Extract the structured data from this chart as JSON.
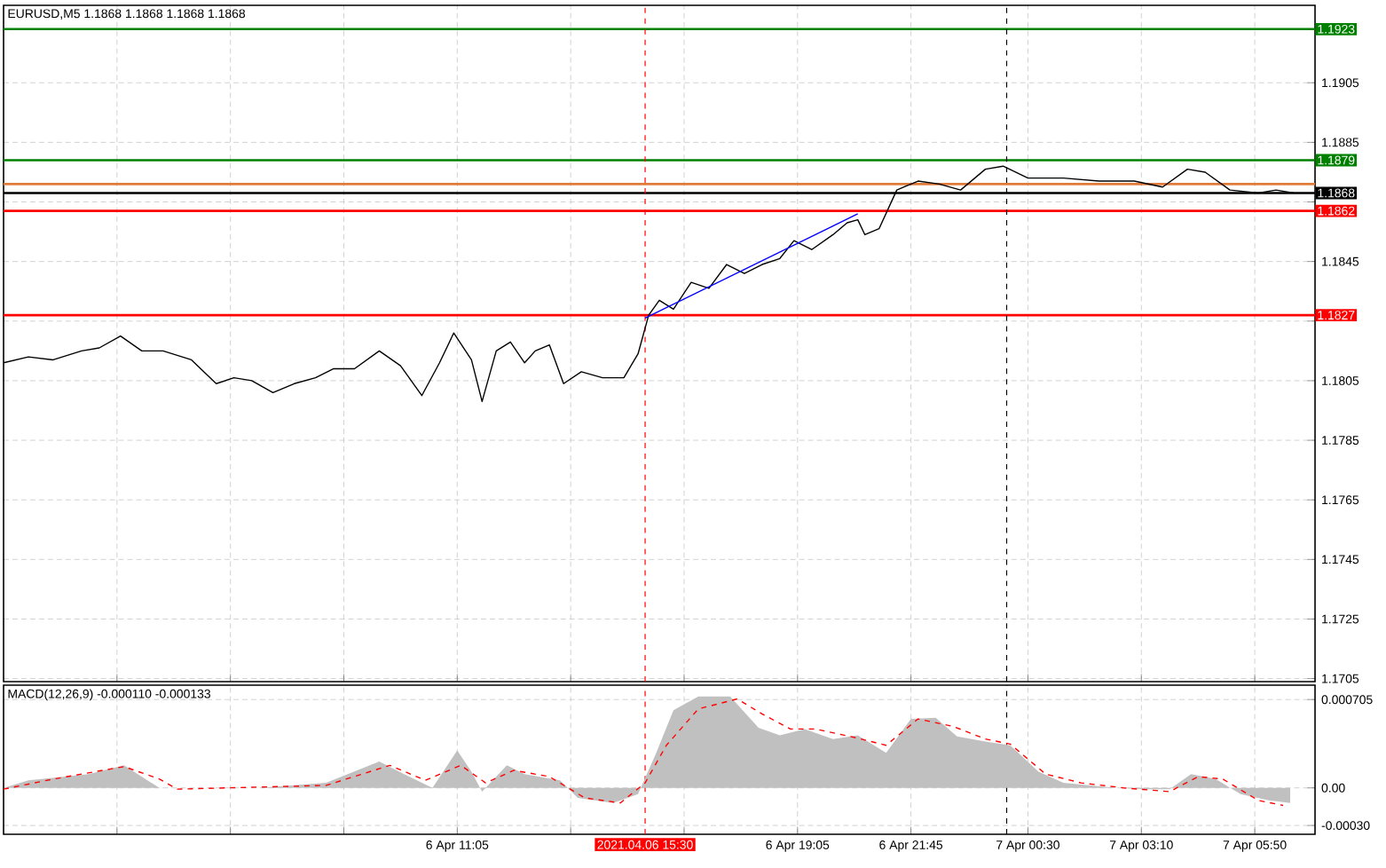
{
  "chart_data": [
    {
      "type": "line",
      "title": "EURUSD,M5  1.1868 1.1868 1.1868 1.1868",
      "grid": true,
      "tick_labels": "y",
      "xlim": [
        "2021-04-06T00:25",
        "2021-04-07T07:15"
      ],
      "ylim": [
        1.1704,
        1.1931
      ],
      "xticks": [
        {
          "value": "2021-04-06T03:05",
          "label": null
        },
        {
          "value": "2021-04-06T05:45",
          "label": null
        },
        {
          "value": "2021-04-06T08:25",
          "label": null
        },
        {
          "value": "2021-04-06T11:05",
          "label": null
        },
        {
          "value": "2021-04-06T13:45",
          "label": null
        },
        {
          "value": "2021-04-06T16:25",
          "label": null
        },
        {
          "value": "2021-04-06T19:05",
          "label": null
        },
        {
          "value": "2021-04-06T21:45",
          "label": null
        },
        {
          "value": "2021-04-07T00:30",
          "label": null
        },
        {
          "value": "2021-04-07T03:10",
          "label": null
        },
        {
          "value": "2021-04-07T05:50",
          "label": null
        }
      ],
      "yticks": [
        {
          "value": 1.1705,
          "label": "1.1705"
        },
        {
          "value": 1.1725,
          "label": "1.1725"
        },
        {
          "value": 1.1745,
          "label": "1.1745"
        },
        {
          "value": 1.1765,
          "label": "1.1765"
        },
        {
          "value": 1.1785,
          "label": "1.1785"
        },
        {
          "value": 1.1805,
          "label": "1.1805"
        },
        {
          "value": 1.1825,
          "label": null
        },
        {
          "value": 1.1845,
          "label": "1.1845"
        },
        {
          "value": 1.1865,
          "label": null
        },
        {
          "value": 1.1885,
          "label": "1.1885"
        },
        {
          "value": 1.1905,
          "label": "1.1905"
        }
      ],
      "ref_lines": [
        {
          "axis": "y",
          "value": 1.1923,
          "label": "1.1923",
          "color": "#008000"
        },
        {
          "axis": "y",
          "value": 1.1879,
          "label": "1.1879",
          "color": "#008000"
        },
        {
          "axis": "y",
          "value": 1.1871,
          "color": "#e07b39"
        },
        {
          "axis": "y",
          "value": 1.1868,
          "label": "1.1868",
          "color": "#000000"
        },
        {
          "axis": "y",
          "value": 1.1862,
          "label": "1.1862",
          "color": "#ff0000"
        },
        {
          "axis": "y",
          "value": 1.1827,
          "label": "1.1827",
          "color": "#ff0000"
        },
        {
          "axis": "x",
          "value": "2021-04-06T15:30",
          "color": "#ff0000",
          "line_style": "dashed"
        },
        {
          "axis": "x",
          "value": "2021-04-07T00:00",
          "color": "#000000",
          "line_style": "dashed"
        }
      ],
      "series": [
        {
          "color": "#000000",
          "x": [
            "2021-04-06T00:25",
            "2021-04-06T01:00",
            "2021-04-06T01:35",
            "2021-04-06T02:15",
            "2021-04-06T02:40",
            "2021-04-06T03:10",
            "2021-04-06T03:40",
            "2021-04-06T04:10",
            "2021-04-06T04:50",
            "2021-04-06T05:25",
            "2021-04-06T05:50",
            "2021-04-06T06:15",
            "2021-04-06T06:45",
            "2021-04-06T07:15",
            "2021-04-06T07:45",
            "2021-04-06T08:10",
            "2021-04-06T08:40",
            "2021-04-06T09:15",
            "2021-04-06T09:45",
            "2021-04-06T10:15",
            "2021-04-06T10:40",
            "2021-04-06T11:00",
            "2021-04-06T11:25",
            "2021-04-06T11:40",
            "2021-04-06T12:00",
            "2021-04-06T12:20",
            "2021-04-06T12:40",
            "2021-04-06T12:55",
            "2021-04-06T13:15",
            "2021-04-06T13:35",
            "2021-04-06T14:00",
            "2021-04-06T14:30",
            "2021-04-06T15:00",
            "2021-04-06T15:20",
            "2021-04-06T15:35",
            "2021-04-06T15:50",
            "2021-04-06T16:10",
            "2021-04-06T16:35",
            "2021-04-06T17:00",
            "2021-04-06T17:25",
            "2021-04-06T17:50",
            "2021-04-06T18:15",
            "2021-04-06T18:40",
            "2021-04-06T19:00",
            "2021-04-06T19:25",
            "2021-04-06T19:55",
            "2021-04-06T20:15",
            "2021-04-06T20:30",
            "2021-04-06T20:40",
            "2021-04-06T21:00",
            "2021-04-06T21:25",
            "2021-04-06T21:55",
            "2021-04-06T22:25",
            "2021-04-06T22:55",
            "2021-04-06T23:30",
            "2021-04-06T23:55",
            "2021-04-07T00:30",
            "2021-04-07T01:20",
            "2021-04-07T02:10",
            "2021-04-07T03:00",
            "2021-04-07T03:40",
            "2021-04-07T04:15",
            "2021-04-07T04:40",
            "2021-04-07T05:15",
            "2021-04-07T05:55",
            "2021-04-07T06:20",
            "2021-04-07T06:45"
          ],
          "values": [
            1.1811,
            1.1813,
            1.1812,
            1.1815,
            1.1816,
            1.182,
            1.1815,
            1.1815,
            1.1812,
            1.1804,
            1.1806,
            1.1805,
            1.1801,
            1.1804,
            1.1806,
            1.1809,
            1.1809,
            1.1815,
            1.181,
            1.18,
            1.1811,
            1.1821,
            1.1812,
            1.1798,
            1.1815,
            1.1818,
            1.1811,
            1.1815,
            1.1817,
            1.1804,
            1.1808,
            1.1806,
            1.1806,
            1.1814,
            1.1827,
            1.1832,
            1.1829,
            1.1838,
            1.1836,
            1.1844,
            1.1841,
            1.1844,
            1.1846,
            1.1852,
            1.1849,
            1.1854,
            1.1858,
            1.1859,
            1.1854,
            1.1856,
            1.1869,
            1.1872,
            1.1871,
            1.1869,
            1.1876,
            1.1877,
            1.1873,
            1.1873,
            1.1872,
            1.1872,
            1.187,
            1.1876,
            1.1875,
            1.1869,
            1.1868,
            1.1869,
            1.1868
          ]
        },
        {
          "color": "#0000ff",
          "x": [
            "2021-04-06T15:30",
            "2021-04-06T20:30"
          ],
          "values": [
            1.1826,
            1.1861
          ]
        }
      ]
    },
    {
      "type": "area",
      "title": "MACD(12,26,9) -0.000110 -0.000133",
      "grid": true,
      "xlim": [
        "2021-04-06T00:25",
        "2021-04-07T07:15"
      ],
      "ylim": [
        -0.00037,
        0.00082
      ],
      "xticks": [
        {
          "value": "2021-04-06T03:05",
          "label": null
        },
        {
          "value": "2021-04-06T05:45",
          "label": null
        },
        {
          "value": "2021-04-06T08:25",
          "label": null
        },
        {
          "value": "2021-04-06T11:05",
          "label": "6 Apr 11:05"
        },
        {
          "value": "2021-04-06T13:45",
          "label": null
        },
        {
          "value": "2021-04-06T16:25",
          "label": null
        },
        {
          "value": "2021-04-06T19:05",
          "label": "6 Apr 19:05"
        },
        {
          "value": "2021-04-06T21:45",
          "label": "6 Apr 21:45"
        },
        {
          "value": "2021-04-07T00:30",
          "label": "7 Apr 00:30"
        },
        {
          "value": "2021-04-07T03:10",
          "label": "7 Apr 03:10"
        },
        {
          "value": "2021-04-07T05:50",
          "label": "7 Apr 05:50"
        }
      ],
      "yticks": [
        {
          "value": -0.0003,
          "label": "-0.00030"
        },
        {
          "value": 0,
          "label": "0.00"
        },
        {
          "value": 0.000705,
          "label": "0.000705"
        }
      ],
      "ref_lines": [
        {
          "axis": "x",
          "value": "2021-04-06T15:30",
          "label": "2021.04.06 15:30",
          "color": "#ff0000",
          "line_style": "dashed"
        },
        {
          "axis": "x",
          "value": "2021-04-07T00:00",
          "color": "#000000",
          "line_style": "dashed"
        }
      ],
      "series": [
        {
          "color": "#c0c0c0",
          "x": [
            "2021-04-06T00:25",
            "2021-04-06T01:00",
            "2021-04-06T02:25",
            "2021-04-06T03:15",
            "2021-04-06T03:45",
            "2021-04-06T04:05",
            "2021-04-06T06:25",
            "2021-04-06T08:00",
            "2021-04-06T09:15",
            "2021-04-06T09:50",
            "2021-04-06T10:30",
            "2021-04-06T11:05",
            "2021-04-06T11:25",
            "2021-04-06T11:40",
            "2021-04-06T12:15",
            "2021-04-06T12:40",
            "2021-04-06T13:30",
            "2021-04-06T13:55",
            "2021-04-06T14:45",
            "2021-04-06T15:20",
            "2021-04-06T15:45",
            "2021-04-06T16:10",
            "2021-04-06T16:45",
            "2021-04-06T17:30",
            "2021-04-06T18:10",
            "2021-04-06T18:40",
            "2021-04-06T19:15",
            "2021-04-06T19:55",
            "2021-04-06T20:30",
            "2021-04-06T21:10",
            "2021-04-06T21:45",
            "2021-04-06T22:20",
            "2021-04-06T22:50",
            "2021-04-06T23:30",
            "2021-04-07T00:05",
            "2021-04-07T00:45",
            "2021-04-07T01:20",
            "2021-04-07T02:35",
            "2021-04-07T03:15",
            "2021-04-07T03:50",
            "2021-04-07T04:20",
            "2021-04-07T04:55",
            "2021-04-07T05:30",
            "2021-04-07T06:10",
            "2021-04-07T06:40"
          ],
          "values": [
            0,
            6e-05,
            0.00011,
            0.00018,
            7e-05,
            0,
            0,
            4e-05,
            0.00021,
            0.00011,
            0,
            0.0003,
            0.00013,
            -3e-05,
            0.00018,
            0.00011,
            6e-05,
            -8e-05,
            -0.00012,
            -5e-05,
            0.00027,
            0.00062,
            0.00073,
            0.00073,
            0.00048,
            0.00042,
            0.00047,
            0.00039,
            0.00042,
            0.00028,
            0.00055,
            0.00056,
            0.00041,
            0.00037,
            0.00034,
            0.00013,
            4e-05,
            0,
            -1e-05,
            -1e-05,
            0.00011,
            7e-05,
            -5e-05,
            -0.0001,
            -0.00012
          ]
        },
        {
          "type": "line",
          "color": "#ff0000",
          "line_style": "dashed",
          "x": [
            "2021-04-06T00:25",
            "2021-04-06T01:35",
            "2021-04-06T03:15",
            "2021-04-06T04:05",
            "2021-04-06T04:30",
            "2021-04-06T08:00",
            "2021-04-06T09:30",
            "2021-04-06T10:20",
            "2021-04-06T11:10",
            "2021-04-06T11:45",
            "2021-04-06T12:25",
            "2021-04-06T13:15",
            "2021-04-06T14:05",
            "2021-04-06T14:55",
            "2021-04-06T15:30",
            "2021-04-06T16:00",
            "2021-04-06T16:45",
            "2021-04-06T17:40",
            "2021-04-06T18:15",
            "2021-04-06T18:55",
            "2021-04-06T19:30",
            "2021-04-06T20:20",
            "2021-04-06T21:10",
            "2021-04-06T21:55",
            "2021-04-06T22:45",
            "2021-04-06T23:30",
            "2021-04-07T00:05",
            "2021-04-07T00:55",
            "2021-04-07T01:45",
            "2021-04-07T02:45",
            "2021-04-07T03:50",
            "2021-04-07T04:30",
            "2021-04-07T05:05",
            "2021-04-07T05:55",
            "2021-04-07T06:30"
          ],
          "values": [
            -1e-05,
            7e-05,
            0.00017,
            7e-05,
            -1e-05,
            2e-05,
            0.00018,
            6e-05,
            0.00018,
            4e-05,
            0.00014,
            9e-05,
            -8e-05,
            -0.00012,
            4e-05,
            0.00034,
            0.00063,
            0.00071,
            0.00059,
            0.00047,
            0.00047,
            0.00041,
            0.00034,
            0.00055,
            0.00049,
            0.00039,
            0.00035,
            0.00011,
            4e-05,
            0,
            -3e-05,
            9e-05,
            7e-05,
            -0.0001,
            -0.00014
          ]
        }
      ]
    }
  ]
}
